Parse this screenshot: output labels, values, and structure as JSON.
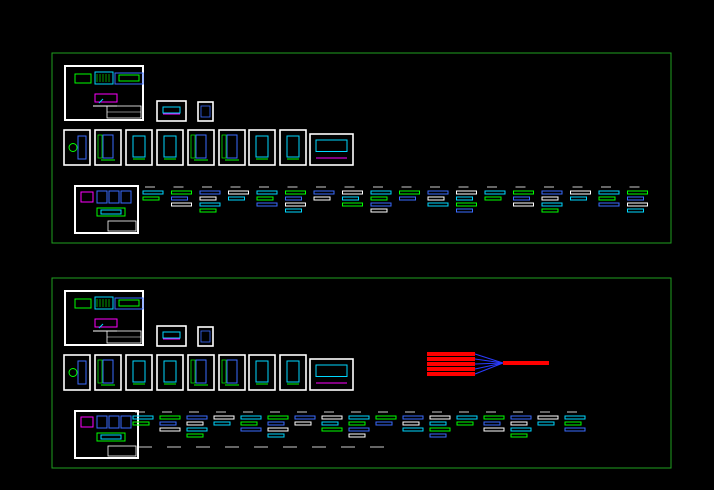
{
  "canvas": {
    "background": "#000000",
    "colors": {
      "frame_green": "#1fa01f",
      "sheet_white": "#ffffff",
      "detail_green": "#00ff00",
      "detail_blue": "#3a6bff",
      "detail_cyan": "#00d8ff",
      "detail_magenta": "#ff00ff",
      "marker_red": "#ff0000",
      "leader_blue": "#2b3cff"
    }
  },
  "panels": [
    {
      "id": "upper-drawing-set",
      "has_marker": false
    },
    {
      "id": "lower-drawing-set",
      "has_marker": true
    }
  ]
}
